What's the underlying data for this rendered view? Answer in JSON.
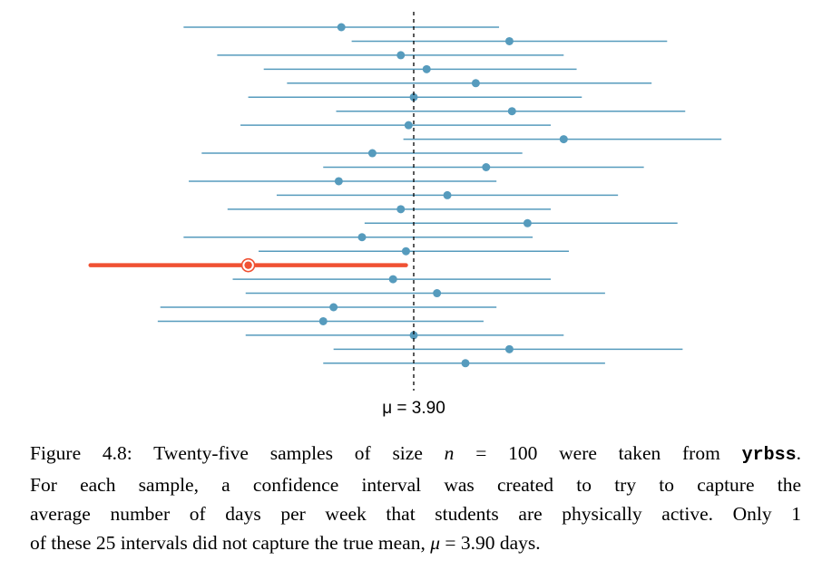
{
  "chart_data": {
    "type": "interval",
    "reference_line": {
      "value": 3.9,
      "label": "μ = 3.90"
    },
    "intervals": [
      {
        "lower": 3.01,
        "point": 3.62,
        "upper": 4.23,
        "captures": true
      },
      {
        "lower": 3.66,
        "point": 4.27,
        "upper": 4.88,
        "captures": true
      },
      {
        "lower": 3.14,
        "point": 3.85,
        "upper": 4.48,
        "captures": true
      },
      {
        "lower": 3.32,
        "point": 3.95,
        "upper": 4.53,
        "captures": true
      },
      {
        "lower": 3.41,
        "point": 4.14,
        "upper": 4.82,
        "captures": true
      },
      {
        "lower": 3.26,
        "point": 3.9,
        "upper": 4.55,
        "captures": true
      },
      {
        "lower": 3.6,
        "point": 4.28,
        "upper": 4.95,
        "captures": true
      },
      {
        "lower": 3.23,
        "point": 3.88,
        "upper": 4.43,
        "captures": true
      },
      {
        "lower": 3.86,
        "point": 4.48,
        "upper": 5.09,
        "captures": true
      },
      {
        "lower": 3.08,
        "point": 3.74,
        "upper": 4.32,
        "captures": true
      },
      {
        "lower": 3.55,
        "point": 4.18,
        "upper": 4.79,
        "captures": true
      },
      {
        "lower": 3.03,
        "point": 3.61,
        "upper": 4.22,
        "captures": true
      },
      {
        "lower": 3.37,
        "point": 4.03,
        "upper": 4.69,
        "captures": true
      },
      {
        "lower": 3.18,
        "point": 3.85,
        "upper": 4.43,
        "captures": true
      },
      {
        "lower": 3.71,
        "point": 4.34,
        "upper": 4.92,
        "captures": true
      },
      {
        "lower": 3.01,
        "point": 3.7,
        "upper": 4.36,
        "captures": true
      },
      {
        "lower": 3.3,
        "point": 3.87,
        "upper": 4.5,
        "captures": true
      },
      {
        "lower": 2.65,
        "point": 3.26,
        "upper": 3.87,
        "captures": false
      },
      {
        "lower": 3.2,
        "point": 3.82,
        "upper": 4.43,
        "captures": true
      },
      {
        "lower": 3.25,
        "point": 3.99,
        "upper": 4.64,
        "captures": true
      },
      {
        "lower": 2.92,
        "point": 3.59,
        "upper": 4.22,
        "captures": true
      },
      {
        "lower": 2.91,
        "point": 3.55,
        "upper": 4.17,
        "captures": true
      },
      {
        "lower": 3.25,
        "point": 3.9,
        "upper": 4.48,
        "captures": true
      },
      {
        "lower": 3.59,
        "point": 4.27,
        "upper": 4.94,
        "captures": true
      },
      {
        "lower": 3.55,
        "point": 4.1,
        "upper": 4.64,
        "captures": true
      }
    ],
    "colors": {
      "interval": "#569bbd",
      "missed": "#f05133",
      "reference": "#000000"
    }
  },
  "caption": {
    "lines": [
      [
        "Figure 4.8: Twenty-five samples of size ",
        {
          "it": "n"
        },
        " = 100 were taken from ",
        {
          "mono": "yrbss"
        },
        "."
      ],
      [
        "For each sample, a confidence interval was created to try to capture the"
      ],
      [
        "average number of days per week that students are physically active. Only 1"
      ],
      [
        "of these 25 intervals did not capture the true mean, ",
        {
          "it": "μ"
        },
        " = 3.90 days."
      ]
    ]
  }
}
